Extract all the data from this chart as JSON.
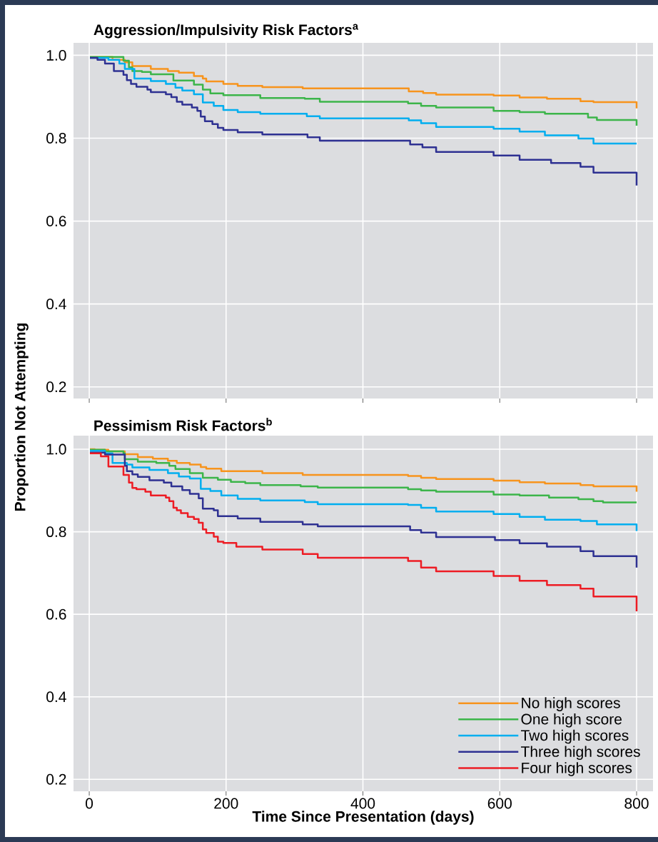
{
  "chart_data": [
    {
      "type": "step",
      "title": "Aggression/Impulsivity Risk Factors$^{a}$",
      "ylabel": "Proportion Not Attempting",
      "xlim": [
        -23,
        824
      ],
      "ylim": [
        0.172,
        1.03
      ],
      "xticks": [
        0,
        200,
        400,
        600,
        800
      ],
      "yticks": [
        {
          "value": 0.2,
          "label": "0.2"
        },
        {
          "value": 0.4,
          "label": "0.4"
        },
        {
          "value": 0.6,
          "label": "0.6"
        },
        {
          "value": 0.8,
          "label": "0.8"
        },
        {
          "value": 1.0,
          "label": "1.0"
        }
      ],
      "grid": true,
      "tick_labels": "y",
      "series": [
        {
          "color": "#f7941d",
          "x": [
            1,
            34,
            52,
            63,
            90,
            115,
            131,
            153,
            166,
            171,
            196,
            217,
            253,
            312,
            467,
            488,
            507,
            591,
            629,
            669,
            718,
            737,
            800
          ],
          "values": [
            0.996,
            0.989,
            0.983,
            0.974,
            0.967,
            0.962,
            0.958,
            0.95,
            0.944,
            0.937,
            0.931,
            0.926,
            0.923,
            0.92,
            0.913,
            0.909,
            0.905,
            0.903,
            0.898,
            0.895,
            0.889,
            0.887,
            0.872
          ]
        },
        {
          "color": "#3cb54a",
          "x": [
            1,
            50,
            58,
            63,
            77,
            90,
            123,
            153,
            166,
            177,
            196,
            250,
            315,
            337,
            466,
            485,
            507,
            591,
            629,
            666,
            729,
            742,
            800
          ],
          "values": [
            0.996,
            0.987,
            0.971,
            0.962,
            0.96,
            0.954,
            0.939,
            0.929,
            0.917,
            0.908,
            0.904,
            0.897,
            0.895,
            0.888,
            0.884,
            0.878,
            0.874,
            0.866,
            0.863,
            0.859,
            0.85,
            0.844,
            0.83
          ]
        },
        {
          "color": "#00aeef",
          "x": [
            1,
            28,
            44,
            52,
            66,
            90,
            112,
            126,
            136,
            153,
            166,
            182,
            196,
            217,
            250,
            318,
            337,
            467,
            485,
            507,
            591,
            629,
            666,
            715,
            737,
            800
          ],
          "values": [
            0.994,
            0.989,
            0.98,
            0.967,
            0.944,
            0.938,
            0.931,
            0.922,
            0.915,
            0.906,
            0.886,
            0.878,
            0.868,
            0.863,
            0.859,
            0.853,
            0.848,
            0.843,
            0.836,
            0.827,
            0.823,
            0.816,
            0.807,
            0.799,
            0.787,
            0.787
          ]
        },
        {
          "color": "#2e3192",
          "x": [
            1,
            12,
            23,
            36,
            50,
            55,
            61,
            69,
            85,
            90,
            112,
            120,
            128,
            136,
            150,
            158,
            163,
            169,
            180,
            188,
            196,
            217,
            253,
            319,
            337,
            469,
            487,
            507,
            591,
            629,
            675,
            718,
            737,
            800
          ],
          "values": [
            0.994,
            0.989,
            0.98,
            0.962,
            0.953,
            0.94,
            0.931,
            0.924,
            0.917,
            0.911,
            0.906,
            0.899,
            0.888,
            0.881,
            0.874,
            0.866,
            0.852,
            0.841,
            0.834,
            0.825,
            0.82,
            0.814,
            0.809,
            0.802,
            0.794,
            0.785,
            0.778,
            0.767,
            0.758,
            0.748,
            0.74,
            0.731,
            0.717,
            0.686
          ]
        }
      ]
    },
    {
      "type": "step",
      "title": "Pessimism Risk Factors$^{b}$",
      "xlabel": "Time Since Presentation (days)",
      "xlim": [
        -23,
        824
      ],
      "ylim": [
        0.171,
        1.033
      ],
      "xticks": [
        0,
        200,
        400,
        600,
        800
      ],
      "yticks": [
        {
          "value": 0.2,
          "label": "0.2"
        },
        {
          "value": 0.4,
          "label": "0.4"
        },
        {
          "value": 0.6,
          "label": "0.6"
        },
        {
          "value": 0.8,
          "label": "0.8"
        },
        {
          "value": 1.0,
          "label": "1.0"
        }
      ],
      "grid": true,
      "legend": "bottom right",
      "series": [
        {
          "name": "No high scores",
          "color": "#f7941d",
          "x": [
            1,
            8,
            28,
            52,
            71,
            93,
            115,
            128,
            147,
            163,
            171,
            193,
            253,
            312,
            466,
            485,
            507,
            591,
            629,
            666,
            718,
            737,
            800
          ],
          "values": [
            1.0,
            0.999,
            0.995,
            0.988,
            0.981,
            0.977,
            0.972,
            0.967,
            0.963,
            0.957,
            0.953,
            0.947,
            0.942,
            0.938,
            0.935,
            0.931,
            0.928,
            0.924,
            0.92,
            0.917,
            0.913,
            0.91,
            0.897
          ]
        },
        {
          "name": "One high score",
          "color": "#3cb54a",
          "x": [
            1,
            23,
            50,
            52,
            71,
            98,
            117,
            126,
            147,
            166,
            188,
            207,
            228,
            250,
            309,
            334,
            466,
            485,
            507,
            591,
            629,
            672,
            715,
            737,
            751,
            800
          ],
          "values": [
            0.999,
            0.995,
            0.99,
            0.976,
            0.97,
            0.967,
            0.96,
            0.952,
            0.942,
            0.931,
            0.926,
            0.921,
            0.918,
            0.913,
            0.91,
            0.907,
            0.903,
            0.9,
            0.897,
            0.89,
            0.888,
            0.883,
            0.879,
            0.874,
            0.871,
            0.871
          ]
        },
        {
          "name": "Two high scores",
          "color": "#00aeef",
          "x": [
            1,
            23,
            34,
            55,
            63,
            88,
            115,
            131,
            147,
            163,
            177,
            193,
            217,
            250,
            315,
            334,
            466,
            485,
            507,
            591,
            629,
            666,
            718,
            742,
            800
          ],
          "values": [
            0.996,
            0.99,
            0.967,
            0.963,
            0.956,
            0.95,
            0.942,
            0.934,
            0.929,
            0.904,
            0.899,
            0.888,
            0.88,
            0.876,
            0.872,
            0.867,
            0.865,
            0.858,
            0.849,
            0.843,
            0.836,
            0.829,
            0.826,
            0.818,
            0.802
          ]
        },
        {
          "name": "Three high scores",
          "color": "#2e3192",
          "x": [
            1,
            23,
            52,
            55,
            63,
            71,
            88,
            109,
            120,
            136,
            147,
            160,
            166,
            182,
            188,
            217,
            250,
            312,
            334,
            469,
            485,
            507,
            593,
            629,
            669,
            718,
            737,
            800
          ],
          "values": [
            0.992,
            0.987,
            0.96,
            0.947,
            0.939,
            0.933,
            0.925,
            0.919,
            0.91,
            0.901,
            0.892,
            0.881,
            0.856,
            0.852,
            0.838,
            0.832,
            0.824,
            0.818,
            0.813,
            0.804,
            0.798,
            0.787,
            0.78,
            0.772,
            0.764,
            0.753,
            0.741,
            0.713
          ]
        },
        {
          "name": "Four high scores",
          "color": "#ed1c24",
          "x": [
            1,
            17,
            28,
            50,
            58,
            63,
            69,
            82,
            90,
            112,
            117,
            123,
            128,
            134,
            144,
            153,
            160,
            166,
            171,
            182,
            188,
            196,
            215,
            253,
            312,
            334,
            466,
            485,
            507,
            591,
            629,
            669,
            718,
            737,
            800
          ],
          "values": [
            0.99,
            0.983,
            0.958,
            0.938,
            0.919,
            0.906,
            0.903,
            0.897,
            0.888,
            0.883,
            0.874,
            0.858,
            0.852,
            0.845,
            0.836,
            0.831,
            0.822,
            0.806,
            0.797,
            0.788,
            0.776,
            0.773,
            0.764,
            0.757,
            0.746,
            0.737,
            0.729,
            0.713,
            0.704,
            0.693,
            0.681,
            0.671,
            0.662,
            0.643,
            0.607
          ]
        }
      ]
    }
  ]
}
